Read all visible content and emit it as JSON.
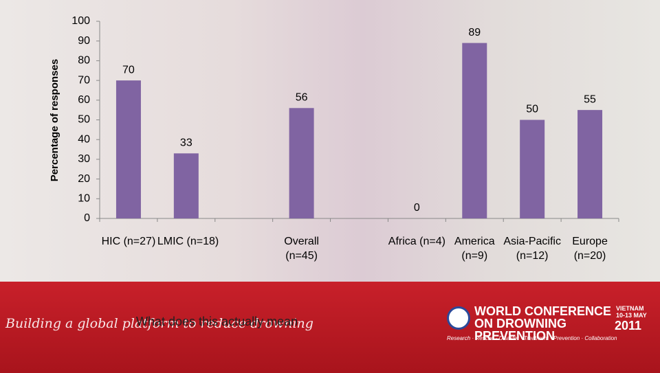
{
  "chart_data": {
    "type": "bar",
    "y_label": "Percentage of responses",
    "categories": [
      "HIC (n=27)",
      "LMIC (n=18)",
      null,
      "Overall (n=45)",
      null,
      "Africa (n=4)",
      "America (n=9)",
      "Asia-Pacific (n=12)",
      "Europe (n=20)"
    ],
    "values": [
      70,
      33,
      null,
      56,
      null,
      0,
      89,
      50,
      55
    ],
    "color": "#8064a2",
    "ylim": [
      0,
      100
    ],
    "yticks": [
      0,
      10,
      20,
      30,
      40,
      50,
      60,
      70,
      80,
      90,
      100
    ],
    "grid": false
  },
  "footer": {
    "tagline": "Building a global platform to reduce drowning",
    "caption": "What does this actually mean",
    "logo_title": "WORLD CONFERENCE ON DROWNING PREVENTION",
    "logo_place": "VIETNAM",
    "logo_dates": "10-13 MAY",
    "logo_year": "2011",
    "logo_motto": "Research · Rescue · Disaster · Treatment · Prevention · Collaboration"
  }
}
